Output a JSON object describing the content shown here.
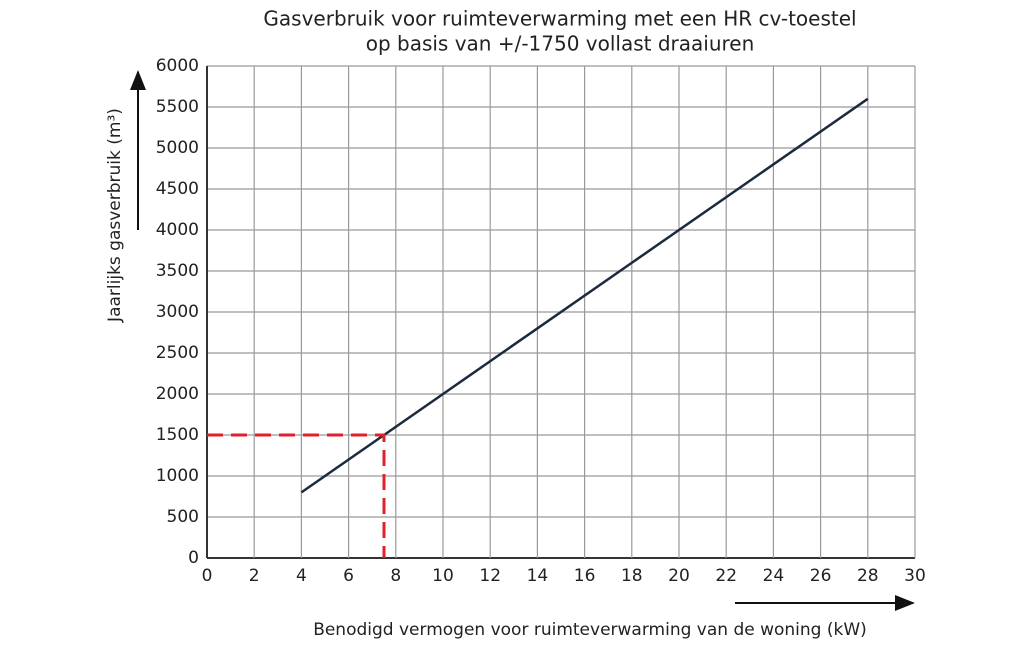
{
  "chart_data": {
    "type": "line",
    "title": [
      "Gasverbruik voor ruimteverwarming met een HR cv-toestel",
      "op basis van +/-1750 vollast draaiuren"
    ],
    "xlabel": "Benodigd vermogen voor ruimteverwarming van de woning (kW)",
    "ylabel": "Jaarlijks gasverbruik (m³)",
    "series": [
      {
        "color": "#1c2a3e",
        "x": [
          4,
          28
        ],
        "values": [
          800,
          5600
        ]
      },
      {
        "color": "#e0202a",
        "dashed": true,
        "x": [
          0,
          7.5,
          7.5
        ],
        "values": [
          1500,
          1500,
          0
        ]
      }
    ],
    "xlim": [
      0,
      30
    ],
    "xticks": [
      0,
      2,
      4,
      6,
      8,
      10,
      12,
      14,
      16,
      18,
      20,
      22,
      24,
      26,
      28,
      30
    ],
    "ylim": [
      0,
      6000
    ],
    "yticks": [
      0,
      500,
      1000,
      1500,
      2000,
      2500,
      3000,
      3500,
      4000,
      4500,
      5000,
      5500,
      6000
    ],
    "grid": true
  }
}
